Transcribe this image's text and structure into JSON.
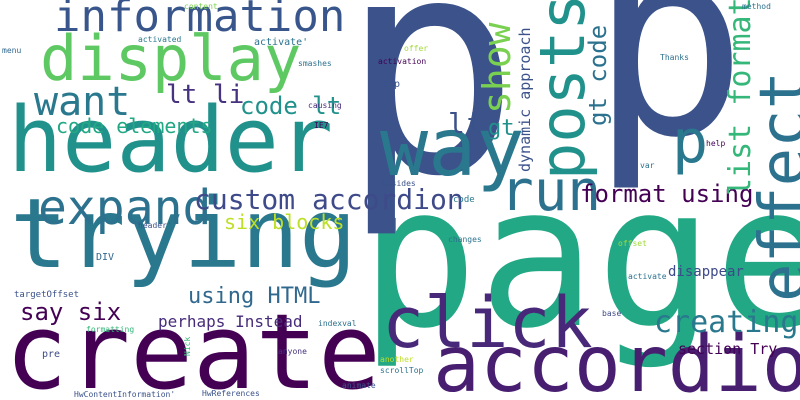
{
  "words": [
    {
      "id": "page",
      "text": "page",
      "color": "#22a884"
    },
    {
      "id": "p-large",
      "text": "p",
      "color": "#3b528b"
    },
    {
      "id": "p-right",
      "text": "p",
      "color": "#3b528b"
    },
    {
      "id": "header",
      "text": "header",
      "color": "#21918c"
    },
    {
      "id": "trying",
      "text": "trying",
      "color": "#2a788e"
    },
    {
      "id": "create",
      "text": "create",
      "color": "#440154"
    },
    {
      "id": "accordion",
      "text": "accordion",
      "color": "#481f70"
    },
    {
      "id": "click",
      "text": "click",
      "color": "#482878"
    },
    {
      "id": "display",
      "text": "display",
      "color": "#5ec962"
    },
    {
      "id": "information",
      "text": "information",
      "color": "#39568c"
    },
    {
      "id": "posts",
      "text": "posts",
      "color": "#21918c"
    },
    {
      "id": "effect",
      "text": "effect",
      "color": "#2c728e"
    },
    {
      "id": "way",
      "text": "way",
      "color": "#2a788e"
    },
    {
      "id": "expand",
      "text": "expand",
      "color": "#2c728e"
    },
    {
      "id": "run",
      "text": "run",
      "color": "#2c728e"
    },
    {
      "id": "want",
      "text": "want",
      "color": "#2a788e"
    },
    {
      "id": "show",
      "text": "show",
      "color": "#7ad151"
    },
    {
      "id": "p-small",
      "text": "p",
      "color": "#2a788e"
    },
    {
      "id": "list-format",
      "text": "list format",
      "color": "#35b779"
    },
    {
      "id": "custom-accordion",
      "text": "custom accordion",
      "color": "#3e4a89"
    },
    {
      "id": "creating",
      "text": "creating",
      "color": "#2a788e"
    },
    {
      "id": "gt-code",
      "text": "gt code",
      "color": "#2c728e"
    },
    {
      "id": "format-using",
      "text": "format using",
      "color": "#440154"
    },
    {
      "id": "code-lt",
      "text": "code lt",
      "color": "#21918c"
    },
    {
      "id": "lt-li",
      "text": "lt li",
      "color": "#46327e"
    },
    {
      "id": "li",
      "text": "li",
      "color": "#3b528b"
    },
    {
      "id": "gt",
      "text": "gt",
      "color": "#21918c"
    },
    {
      "id": "code-elements",
      "text": "code elements",
      "color": "#22a884"
    },
    {
      "id": "six-blocks",
      "text": "six blocks",
      "color": "#bddf26"
    },
    {
      "id": "using-html",
      "text": "using HTML",
      "color": "#31688e"
    },
    {
      "id": "say-six",
      "text": "say six",
      "color": "#440154"
    },
    {
      "id": "perhaps-instead",
      "text": "perhaps Instead",
      "color": "#472c7a"
    },
    {
      "id": "dynamic-approach",
      "text": "dynamic approach",
      "color": "#3b528b"
    },
    {
      "id": "section-try",
      "text": "section Try",
      "color": "#440154"
    },
    {
      "id": "disappear",
      "text": "disappear",
      "color": "#3e4a89"
    },
    {
      "id": "content",
      "text": "content",
      "color": "#7ad151"
    },
    {
      "id": "method",
      "text": "method",
      "color": "#2c728e"
    },
    {
      "id": "menu",
      "text": "menu",
      "color": "#31688e"
    },
    {
      "id": "activated",
      "text": "activated",
      "color": "#2a788e"
    },
    {
      "id": "activate-q",
      "text": "activate'",
      "color": "#2c728e"
    },
    {
      "id": "offer",
      "text": "offer",
      "color": "#a0da39"
    },
    {
      "id": "activation",
      "text": "activation",
      "color": "#440154"
    },
    {
      "id": "thanks",
      "text": "Thanks",
      "color": "#2c728e"
    },
    {
      "id": "smashes",
      "text": "smashes",
      "color": "#2c728e"
    },
    {
      "id": "top",
      "text": "top",
      "color": "#3b528b"
    },
    {
      "id": "causing",
      "text": "causing",
      "color": "#472c7a"
    },
    {
      "id": "ie7",
      "text": "IE7",
      "color": "#440154"
    },
    {
      "id": "help",
      "text": "help",
      "color": "#440154"
    },
    {
      "id": "var",
      "text": "var",
      "color": "#2c728e"
    },
    {
      "id": "besides",
      "text": "besides",
      "color": "#3b528b"
    },
    {
      "id": "header-q",
      "text": "header'",
      "color": "#3b528b"
    },
    {
      "id": "code",
      "text": "code",
      "color": "#2a788e"
    },
    {
      "id": "changes",
      "text": "changes",
      "color": "#2c728e"
    },
    {
      "id": "offset",
      "text": "offset",
      "color": "#a0da39"
    },
    {
      "id": "div",
      "text": "DIV",
      "color": "#31688e"
    },
    {
      "id": "activate",
      "text": "activate",
      "color": "#2c728e"
    },
    {
      "id": "targetoffset",
      "text": "targetOffset",
      "color": "#3b528b"
    },
    {
      "id": "indexval",
      "text": "indexval",
      "color": "#2c728e"
    },
    {
      "id": "base",
      "text": "base",
      "color": "#3e4a89"
    },
    {
      "id": "formatting",
      "text": "formatting",
      "color": "#35b779"
    },
    {
      "id": "nick",
      "text": "Nick",
      "color": "#35b779"
    },
    {
      "id": "anyone",
      "text": "anyone",
      "color": "#46327e"
    },
    {
      "id": "another",
      "text": "another",
      "color": "#bddf26"
    },
    {
      "id": "scrolltop",
      "text": "scrollTop",
      "color": "#2c728e"
    },
    {
      "id": "pre",
      "text": "pre",
      "color": "#3e4a89"
    },
    {
      "id": "animate",
      "text": "animate",
      "color": "#3b528b"
    },
    {
      "id": "hwcontentinformation",
      "text": "HwContentInformation'",
      "color": "#3b528b"
    },
    {
      "id": "hwreferences",
      "text": "HwReferences",
      "color": "#3b528b"
    }
  ]
}
